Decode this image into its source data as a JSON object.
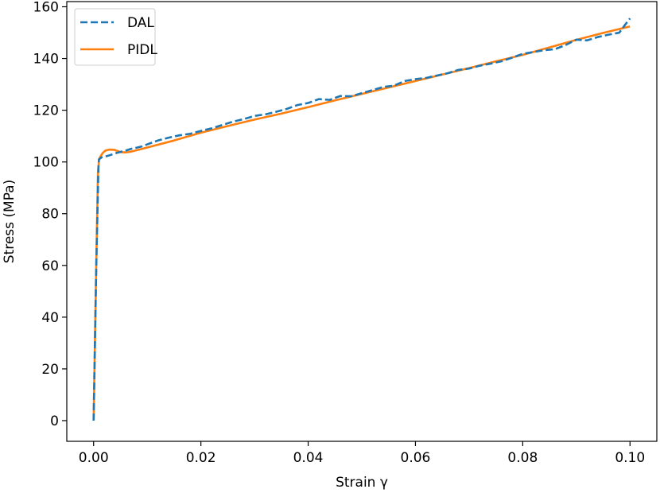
{
  "chart_data": {
    "type": "line",
    "xlabel": "Strain γ",
    "ylabel": "Stress (MPa)",
    "xlim": [
      -0.005,
      0.105
    ],
    "ylim": [
      -8,
      162
    ],
    "xticks": [
      0.0,
      0.02,
      0.04,
      0.06,
      0.08,
      0.1
    ],
    "xtick_labels": [
      "0.00",
      "0.02",
      "0.04",
      "0.06",
      "0.08",
      "0.10"
    ],
    "yticks": [
      0,
      20,
      40,
      60,
      80,
      100,
      120,
      140,
      160
    ],
    "ytick_labels": [
      "0",
      "20",
      "40",
      "60",
      "80",
      "100",
      "120",
      "140",
      "160"
    ],
    "grid": false,
    "legend_position": "top-left",
    "series": [
      {
        "name": "DAL",
        "color": "#1f77b4",
        "style": "dashed",
        "x": [
          0.0,
          0.0005,
          0.0009,
          0.001,
          0.0015,
          0.002,
          0.003,
          0.004,
          0.005,
          0.006,
          0.007,
          0.008,
          0.009,
          0.01,
          0.012,
          0.014,
          0.016,
          0.018,
          0.02,
          0.022,
          0.024,
          0.026,
          0.028,
          0.03,
          0.032,
          0.034,
          0.036,
          0.038,
          0.04,
          0.042,
          0.044,
          0.046,
          0.048,
          0.05,
          0.052,
          0.054,
          0.056,
          0.058,
          0.06,
          0.062,
          0.064,
          0.066,
          0.068,
          0.07,
          0.072,
          0.074,
          0.076,
          0.078,
          0.08,
          0.082,
          0.084,
          0.086,
          0.088,
          0.09,
          0.092,
          0.094,
          0.096,
          0.098,
          0.099,
          0.1
        ],
        "y": [
          0,
          60,
          98,
          101,
          101.8,
          102,
          102.6,
          103.3,
          103.9,
          104.4,
          105.1,
          105.5,
          106.0,
          106.8,
          108.3,
          109.4,
          110.3,
          110.9,
          112.0,
          113.0,
          114.3,
          115.6,
          116.6,
          117.8,
          118.4,
          119.4,
          120.5,
          122.0,
          122.8,
          124.3,
          124.0,
          125.5,
          125.4,
          126.6,
          127.8,
          129.0,
          129.5,
          131.3,
          132.0,
          132.5,
          133.4,
          134.3,
          135.6,
          136.1,
          137.2,
          138.0,
          138.9,
          140.3,
          141.8,
          142.5,
          143.2,
          143.6,
          145.2,
          147.3,
          147.0,
          148.3,
          149.2,
          150.0,
          152.8,
          155.5
        ]
      },
      {
        "name": "PIDL",
        "color": "#ff7f0e",
        "style": "solid",
        "x": [
          0.0,
          0.0004,
          0.0008,
          0.001,
          0.0013,
          0.0017,
          0.0022,
          0.003,
          0.0038,
          0.0045,
          0.005,
          0.006,
          0.007,
          0.008,
          0.01,
          0.015,
          0.02,
          0.025,
          0.03,
          0.035,
          0.04,
          0.045,
          0.05,
          0.055,
          0.06,
          0.065,
          0.07,
          0.075,
          0.08,
          0.085,
          0.09,
          0.095,
          0.1
        ],
        "y": [
          0,
          50,
          95,
          101,
          102.2,
          103.5,
          104.4,
          104.8,
          104.7,
          104.2,
          103.8,
          103.7,
          104.0,
          104.5,
          105.6,
          108.3,
          111.3,
          113.9,
          116.4,
          118.7,
          121.2,
          123.8,
          126.3,
          128.8,
          131.3,
          133.8,
          136.3,
          138.9,
          141.4,
          144.3,
          147.2,
          149.9,
          152.4
        ]
      }
    ]
  }
}
